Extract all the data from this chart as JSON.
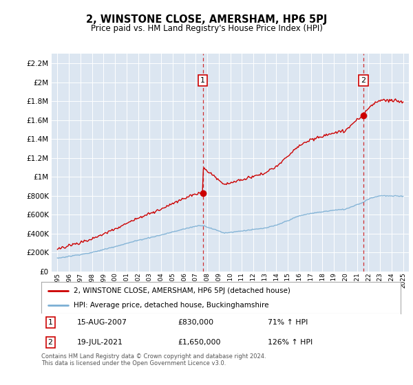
{
  "title": "2, WINSTONE CLOSE, AMERSHAM, HP6 5PJ",
  "subtitle": "Price paid vs. HM Land Registry's House Price Index (HPI)",
  "legend_label_red": "2, WINSTONE CLOSE, AMERSHAM, HP6 5PJ (detached house)",
  "legend_label_blue": "HPI: Average price, detached house, Buckinghamshire",
  "sale1_label": "1",
  "sale1_date_str": "15-AUG-2007",
  "sale1_year": 2007.62,
  "sale1_price": 830000,
  "sale1_pct": "71% ↑ HPI",
  "sale2_label": "2",
  "sale2_date_str": "19-JUL-2021",
  "sale2_year": 2021.54,
  "sale2_price": 1650000,
  "sale2_pct": "126% ↑ HPI",
  "footnote": "Contains HM Land Registry data © Crown copyright and database right 2024.\nThis data is licensed under the Open Government Licence v3.0.",
  "ylim": [
    0,
    2300000
  ],
  "xlim_left": 1994.5,
  "xlim_right": 2025.5,
  "background_color": "#dce6f1",
  "red_color": "#cc0000",
  "blue_color": "#7bafd4",
  "grid_color": "#ffffff"
}
